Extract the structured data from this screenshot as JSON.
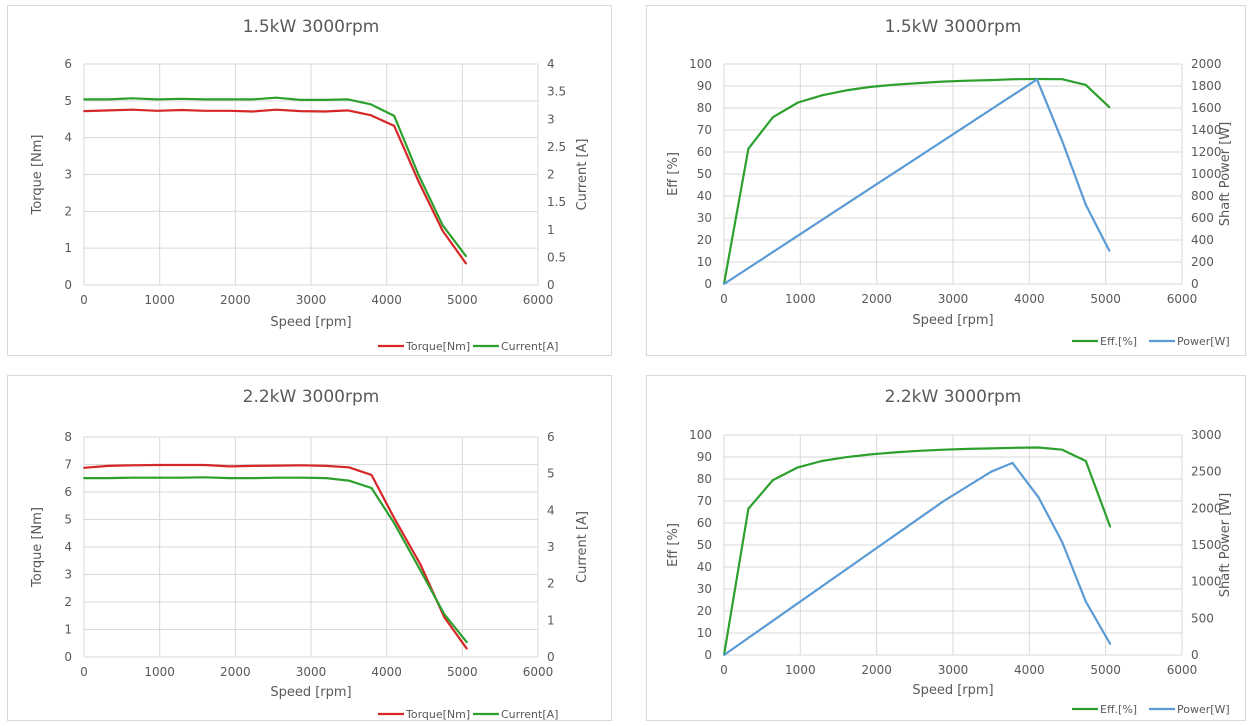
{
  "chart_data": [
    {
      "type": "line",
      "title": "1.5kW 3000rpm",
      "xlabel": "Speed [rpm]",
      "ylabel": "Torque [Nm]",
      "y2label": "Current [A]",
      "xlim": [
        0,
        6000
      ],
      "xticks": [
        0,
        1000,
        2000,
        3000,
        4000,
        5000,
        6000
      ],
      "ylim": [
        0,
        6
      ],
      "yticks": [
        0,
        1,
        2,
        3,
        4,
        5,
        6
      ],
      "y2lim": [
        0,
        4
      ],
      "y2ticks": [
        "0",
        "0.5",
        "1",
        "1.5",
        "2",
        "2.5",
        "3",
        "3.5",
        "4"
      ],
      "grid": true,
      "legend_position": "bottom-right",
      "series": [
        {
          "name": "Torque[Nm]",
          "axis": "left",
          "color": "#d62728",
          "x": [
            0,
            330,
            640,
            970,
            1290,
            1600,
            1920,
            2230,
            2540,
            2860,
            3180,
            3490,
            3790,
            4100,
            4420,
            4740,
            5050
          ],
          "y": [
            4.72,
            4.74,
            4.76,
            4.73,
            4.75,
            4.73,
            4.73,
            4.71,
            4.76,
            4.72,
            4.71,
            4.74,
            4.61,
            4.32,
            2.82,
            1.47,
            0.58
          ]
        },
        {
          "name": "Current[A]",
          "axis": "right",
          "color": "#2ca02c",
          "x": [
            0,
            330,
            640,
            970,
            1290,
            1600,
            1920,
            2230,
            2540,
            2860,
            3180,
            3490,
            3790,
            4100,
            4420,
            4740,
            5050
          ],
          "y": [
            3.36,
            3.36,
            3.38,
            3.36,
            3.37,
            3.36,
            3.36,
            3.36,
            3.39,
            3.35,
            3.35,
            3.36,
            3.27,
            3.06,
            2.0,
            1.08,
            0.52
          ]
        }
      ]
    },
    {
      "type": "line",
      "title": "1.5kW 3000rpm",
      "xlabel": "Speed [rpm]",
      "ylabel": "Eff [%]",
      "y2label": "Shaft Power [W]",
      "xlim": [
        0,
        6000
      ],
      "xticks": [
        0,
        1000,
        2000,
        3000,
        4000,
        5000,
        6000
      ],
      "ylim": [
        0,
        100
      ],
      "yticks": [
        0,
        10,
        20,
        30,
        40,
        50,
        60,
        70,
        80,
        90,
        100
      ],
      "y2lim": [
        0,
        2000
      ],
      "y2ticks": [
        "0",
        "200",
        "400",
        "600",
        "800",
        "1000",
        "1200",
        "1400",
        "1600",
        "1800",
        "2000"
      ],
      "grid": true,
      "legend_position": "bottom-right",
      "series": [
        {
          "name": "Eff.[%]",
          "axis": "left",
          "color": "#2ca02c",
          "x": [
            0,
            320,
            640,
            970,
            1290,
            1600,
            1920,
            2230,
            2550,
            2860,
            3180,
            3490,
            3800,
            4120,
            4430,
            4740,
            5050
          ],
          "y": [
            0,
            61.5,
            75.8,
            82.5,
            85.8,
            88,
            89.6,
            90.6,
            91.3,
            92,
            92.4,
            92.7,
            93.1,
            93.2,
            93.1,
            90.5,
            80.3
          ]
        },
        {
          "name": "Power[W]",
          "axis": "right",
          "color": "#5b9bd5",
          "x": [
            0,
            4100,
            4430,
            4740,
            5050
          ],
          "y": [
            0,
            1860,
            1300,
            720,
            300
          ]
        }
      ]
    },
    {
      "type": "line",
      "title": "2.2kW 3000rpm",
      "xlabel": "Speed [rpm]",
      "ylabel": "Torque [Nm]",
      "y2label": "Current [A]",
      "xlim": [
        0,
        6000
      ],
      "xticks": [
        0,
        1000,
        2000,
        3000,
        4000,
        5000,
        6000
      ],
      "ylim": [
        0,
        8
      ],
      "yticks": [
        0,
        1,
        2,
        3,
        4,
        5,
        6,
        7,
        8
      ],
      "y2lim": [
        0,
        6
      ],
      "y2ticks": [
        "0",
        "1",
        "2",
        "3",
        "4",
        "5",
        "6"
      ],
      "grid": true,
      "legend_position": "bottom-right",
      "series": [
        {
          "name": "Torque[Nm]",
          "axis": "left",
          "color": "#d62728",
          "x": [
            0,
            320,
            640,
            960,
            1280,
            1600,
            1920,
            2240,
            2560,
            2880,
            3200,
            3500,
            3800,
            4100,
            4450,
            4760,
            5060
          ],
          "y": [
            6.88,
            6.95,
            6.97,
            6.98,
            6.98,
            6.98,
            6.93,
            6.95,
            6.96,
            6.97,
            6.95,
            6.9,
            6.62,
            5.05,
            3.35,
            1.45,
            0.3
          ]
        },
        {
          "name": "Current[A]",
          "axis": "right",
          "color": "#2ca02c",
          "x": [
            0,
            320,
            640,
            960,
            1280,
            1600,
            1920,
            2240,
            2560,
            2880,
            3200,
            3500,
            3800,
            4100,
            4450,
            4760,
            5060
          ],
          "y": [
            4.88,
            4.88,
            4.89,
            4.89,
            4.89,
            4.9,
            4.88,
            4.88,
            4.89,
            4.89,
            4.88,
            4.81,
            4.61,
            3.65,
            2.35,
            1.17,
            0.4
          ]
        }
      ]
    },
    {
      "type": "line",
      "title": "2.2kW 3000rpm",
      "xlabel": "Speed [rpm]",
      "ylabel": "Eff [%]",
      "y2label": "Shaft Power [W]",
      "xlim": [
        0,
        6000
      ],
      "xticks": [
        0,
        1000,
        2000,
        3000,
        4000,
        5000,
        6000
      ],
      "ylim": [
        0,
        100
      ],
      "yticks": [
        0,
        10,
        20,
        30,
        40,
        50,
        60,
        70,
        80,
        90,
        100
      ],
      "y2lim": [
        0,
        3000
      ],
      "y2ticks": [
        "0",
        "500",
        "1000",
        "1500",
        "2000",
        "2500",
        "3000"
      ],
      "grid": true,
      "legend_position": "bottom-right",
      "series": [
        {
          "name": "Eff.[%]",
          "axis": "left",
          "color": "#2ca02c",
          "x": [
            0,
            320,
            640,
            960,
            1280,
            1600,
            1920,
            2240,
            2560,
            2880,
            3200,
            3500,
            3800,
            4120,
            4430,
            4740,
            5060
          ],
          "y": [
            0,
            66.5,
            79.5,
            85.2,
            88.2,
            89.9,
            91.2,
            92.1,
            92.8,
            93.3,
            93.7,
            93.9,
            94.2,
            94.3,
            93.3,
            88.2,
            58.3
          ]
        },
        {
          "name": "Power[W]",
          "axis": "right",
          "color": "#5b9bd5",
          "x": [
            0,
            2880,
            3500,
            3780,
            4120,
            4430,
            4740,
            5060
          ],
          "y": [
            0,
            2100,
            2500,
            2620,
            2150,
            1540,
            730,
            150
          ]
        }
      ]
    }
  ]
}
